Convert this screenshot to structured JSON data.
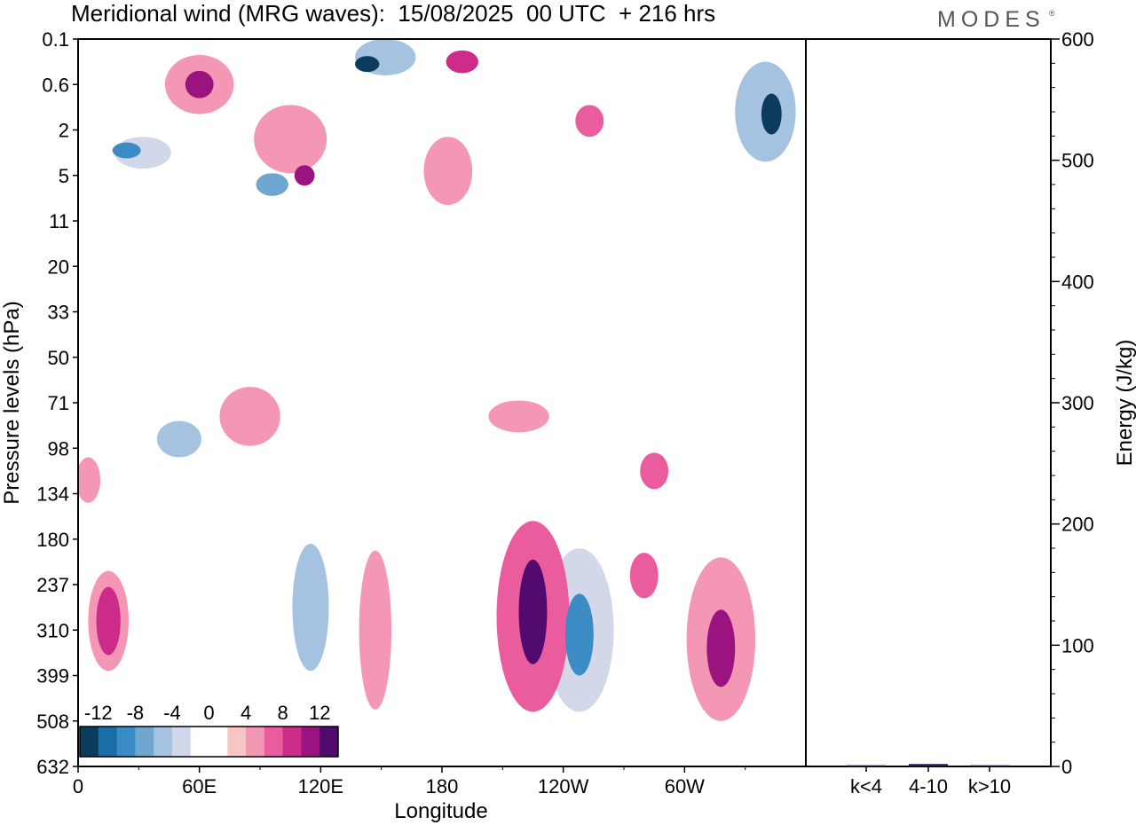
{
  "title": "Meridional wind (MRG waves):  15/08/2025  00 UTC  + 216 hrs",
  "brand": "MODES",
  "brand_mark": "®",
  "chart_data": [
    {
      "type": "heatmap",
      "name": "meridional-wind-contours",
      "xlabel": "Longitude",
      "ylabel": "Pressure levels (hPa)",
      "x_ticks": [
        "0",
        "60E",
        "120E",
        "180",
        "120W",
        "60W"
      ],
      "x_tick_degrees": [
        0,
        60,
        120,
        180,
        240,
        300
      ],
      "x_range_degrees": [
        0,
        360
      ],
      "y_ticks": [
        "0.1",
        "0.6",
        "2",
        "5",
        "11",
        "20",
        "33",
        "50",
        "71",
        "98",
        "134",
        "180",
        "237",
        "310",
        "399",
        "508",
        "632"
      ],
      "colorbar": {
        "labels": [
          "-12",
          "-8",
          "-4",
          "0",
          "4",
          "8",
          "12"
        ],
        "levels": [
          -14,
          -12,
          -10,
          -8,
          -6,
          -4,
          -2,
          2,
          4,
          6,
          8,
          10,
          12,
          14
        ],
        "colors": [
          "#0b3c5d",
          "#1a6ea8",
          "#3b8cc4",
          "#6ea6d0",
          "#a5c2e0",
          "#d2d7ea",
          "#ffffff",
          "#ffffff",
          "#f7c6c4",
          "#f497b4",
          "#ea5c9d",
          "#cc2b8a",
          "#9b137e",
          "#520a6e"
        ]
      },
      "features": [
        {
          "lon": 143,
          "level_index": 0.55,
          "value": -14,
          "lon_width": 12,
          "level_height": 0.35
        },
        {
          "lon": 152,
          "level_index": 0.4,
          "value": -6,
          "lon_width": 30,
          "level_height": 0.8
        },
        {
          "lon": 343,
          "level_index": 1.65,
          "value": -14,
          "lon_width": 10,
          "level_height": 0.9
        },
        {
          "lon": 340,
          "level_index": 1.6,
          "value": -6,
          "lon_width": 30,
          "level_height": 2.2
        },
        {
          "lon": 24,
          "level_index": 2.45,
          "value": -10,
          "lon_width": 14,
          "level_height": 0.35
        },
        {
          "lon": 32,
          "level_index": 2.5,
          "value": -4,
          "lon_width": 28,
          "level_height": 0.7
        },
        {
          "lon": 96,
          "level_index": 3.2,
          "value": -8,
          "lon_width": 16,
          "level_height": 0.5
        },
        {
          "lon": 60,
          "level_index": 1.0,
          "value": 10,
          "lon_width": 14,
          "level_height": 0.6
        },
        {
          "lon": 60,
          "level_index": 1.0,
          "value": 4,
          "lon_width": 34,
          "level_height": 1.3
        },
        {
          "lon": 190,
          "level_index": 0.5,
          "value": 8,
          "lon_width": 16,
          "level_height": 0.5
        },
        {
          "lon": 112,
          "level_index": 3.0,
          "value": 10,
          "lon_width": 10,
          "level_height": 0.45
        },
        {
          "lon": 105,
          "level_index": 2.2,
          "value": 4,
          "lon_width": 36,
          "level_height": 1.5
        },
        {
          "lon": 183,
          "level_index": 2.9,
          "value": 4,
          "lon_width": 24,
          "level_height": 1.5
        },
        {
          "lon": 253,
          "level_index": 1.8,
          "value": 6,
          "lon_width": 14,
          "level_height": 0.7
        },
        {
          "lon": 225,
          "level_index": 12.6,
          "value": 14,
          "lon_width": 14,
          "level_height": 2.3
        },
        {
          "lon": 225,
          "level_index": 12.7,
          "value": 6,
          "lon_width": 36,
          "level_height": 4.2
        },
        {
          "lon": 248,
          "level_index": 13.1,
          "value": -10,
          "lon_width": 14,
          "level_height": 1.8
        },
        {
          "lon": 248,
          "level_index": 13.0,
          "value": -4,
          "lon_width": 34,
          "level_height": 3.6
        },
        {
          "lon": 318,
          "level_index": 13.4,
          "value": 10,
          "lon_width": 14,
          "level_height": 1.7
        },
        {
          "lon": 318,
          "level_index": 13.2,
          "value": 4,
          "lon_width": 34,
          "level_height": 3.6
        },
        {
          "lon": 15,
          "level_index": 12.8,
          "value": 8,
          "lon_width": 12,
          "level_height": 1.5
        },
        {
          "lon": 15,
          "level_index": 12.8,
          "value": 4,
          "lon_width": 20,
          "level_height": 2.2
        },
        {
          "lon": 115,
          "level_index": 12.5,
          "value": -6,
          "lon_width": 18,
          "level_height": 2.8
        },
        {
          "lon": 147,
          "level_index": 13.0,
          "value": 4,
          "lon_width": 16,
          "level_height": 3.5
        },
        {
          "lon": 285,
          "level_index": 9.5,
          "value": 6,
          "lon_width": 14,
          "level_height": 0.8
        },
        {
          "lon": 280,
          "level_index": 11.8,
          "value": 6,
          "lon_width": 14,
          "level_height": 1.0
        },
        {
          "lon": 50,
          "level_index": 8.8,
          "value": -6,
          "lon_width": 22,
          "level_height": 0.8
        },
        {
          "lon": 50,
          "level_index": 8.5,
          "value": -2,
          "lon_width": 48,
          "level_height": 1.5
        },
        {
          "lon": 85,
          "level_index": 8.3,
          "value": 4,
          "lon_width": 30,
          "level_height": 1.3
        },
        {
          "lon": 218,
          "level_index": 8.3,
          "value": 4,
          "lon_width": 30,
          "level_height": 0.7
        },
        {
          "lon": 5,
          "level_index": 9.7,
          "value": 4,
          "lon_width": 12,
          "level_height": 1.0
        }
      ]
    },
    {
      "type": "bar",
      "name": "energy-panel",
      "categories": [
        "k<4",
        "4-10",
        "k>10"
      ],
      "values": [
        1,
        2,
        1
      ],
      "ylabel": "Energy (J/kg)",
      "ylim": [
        0,
        600
      ],
      "y_ticks": [
        "0",
        "100",
        "200",
        "300",
        "400",
        "500",
        "600"
      ],
      "bar_color": "#1c1c5a"
    }
  ]
}
